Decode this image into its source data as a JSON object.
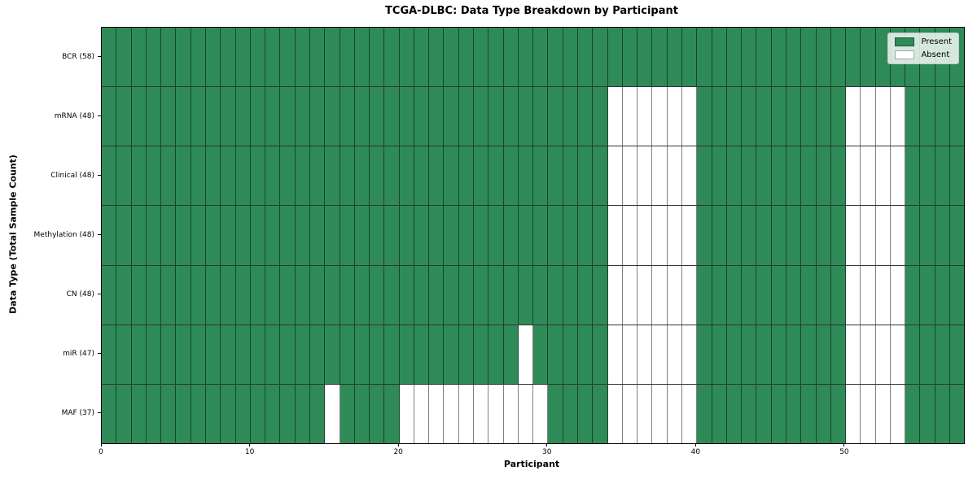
{
  "chart_data": {
    "type": "heatmap",
    "title": "TCGA-DLBC: Data Type Breakdown by Participant",
    "xlabel": "Participant",
    "ylabel": "Data Type (Total Sample Count)",
    "x_ticks": [
      0,
      10,
      20,
      30,
      40,
      50
    ],
    "x_range": [
      0,
      58
    ],
    "n_participants": 58,
    "grid": true,
    "legend_position": "upper right",
    "colors": {
      "present": "#2e8b57",
      "absent": "#ffffff"
    },
    "legend": [
      {
        "label": "Present",
        "value": "present"
      },
      {
        "label": "Absent",
        "value": "absent"
      }
    ],
    "rows": [
      {
        "label": "BCR (58)",
        "total": 58,
        "absent_participants": []
      },
      {
        "label": "mRNA (48)",
        "total": 48,
        "absent_participants": [
          34,
          35,
          36,
          37,
          38,
          39,
          50,
          51,
          52,
          53
        ]
      },
      {
        "label": "Clinical (48)",
        "total": 48,
        "absent_participants": [
          34,
          35,
          36,
          37,
          38,
          39,
          50,
          51,
          52,
          53
        ]
      },
      {
        "label": "Methylation (48)",
        "total": 48,
        "absent_participants": [
          34,
          35,
          36,
          37,
          38,
          39,
          50,
          51,
          52,
          53
        ]
      },
      {
        "label": "CN (48)",
        "total": 48,
        "absent_participants": [
          34,
          35,
          36,
          37,
          38,
          39,
          50,
          51,
          52,
          53
        ]
      },
      {
        "label": "miR (47)",
        "total": 47,
        "absent_participants": [
          28,
          34,
          35,
          36,
          37,
          38,
          39,
          50,
          51,
          52,
          53
        ]
      },
      {
        "label": "MAF (37)",
        "total": 37,
        "absent_participants": [
          15,
          20,
          21,
          22,
          23,
          24,
          25,
          26,
          27,
          28,
          29,
          34,
          35,
          36,
          37,
          38,
          39,
          50,
          51,
          52,
          53
        ]
      }
    ]
  }
}
